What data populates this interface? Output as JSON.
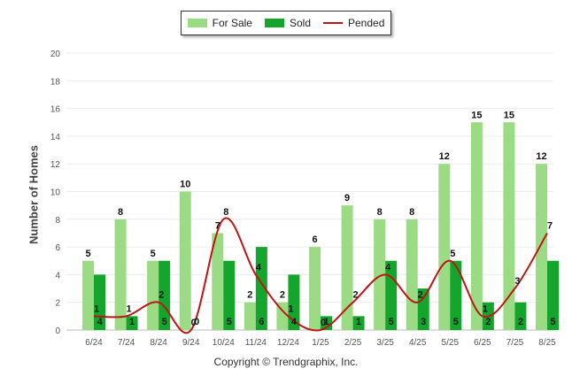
{
  "colors": {
    "for_sale": "#9bdb84",
    "sold": "#14a52c",
    "pended": "#c01414"
  },
  "legend": [
    {
      "label": "For Sale",
      "color": "#9bdb84",
      "kind": "bar"
    },
    {
      "label": "Sold",
      "color": "#14a52c",
      "kind": "bar"
    },
    {
      "label": "Pended",
      "color": "#c01414",
      "kind": "line"
    }
  ],
  "copyright": "Copyright © Trendgraphix, Inc.",
  "chart_data": {
    "type": "bar",
    "ylabel": "Number of Homes",
    "ylim": [
      0,
      20
    ],
    "yticks": [
      0,
      2,
      4,
      6,
      8,
      10,
      12,
      14,
      16,
      18,
      20
    ],
    "categories": [
      "6/24",
      "7/24",
      "8/24",
      "9/24",
      "10/24",
      "11/24",
      "12/24",
      "1/25",
      "2/25",
      "3/25",
      "4/25",
      "5/25",
      "6/25",
      "7/25",
      "8/25"
    ],
    "series": [
      {
        "name": "For Sale",
        "type": "bar",
        "values": [
          5,
          8,
          5,
          10,
          7,
          2,
          2,
          6,
          9,
          8,
          8,
          12,
          15,
          15,
          12
        ]
      },
      {
        "name": "Sold",
        "type": "bar",
        "values": [
          4,
          1,
          5,
          0,
          5,
          6,
          4,
          1,
          1,
          5,
          3,
          5,
          2,
          2,
          5
        ]
      },
      {
        "name": "Pended",
        "type": "line",
        "values": [
          1,
          1,
          2,
          0,
          8,
          4,
          1,
          0,
          2,
          4,
          2,
          5,
          1,
          3,
          7
        ]
      }
    ],
    "grid": true,
    "legend_position": "top"
  }
}
